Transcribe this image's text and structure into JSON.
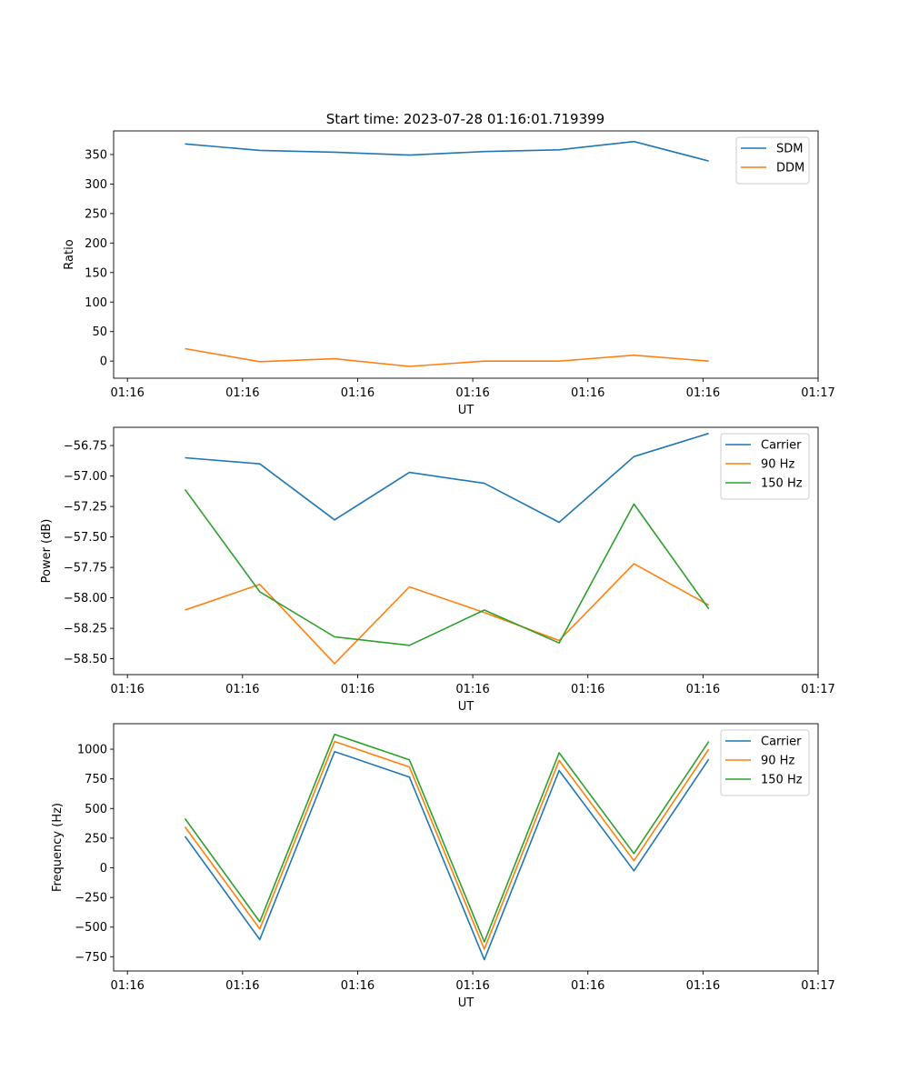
{
  "title": "Start time: 2023-07-28 01:16:01.719399",
  "chart_data": [
    {
      "type": "line",
      "xlabel": "UT",
      "ylabel": "Ratio",
      "xticks": [
        "01:16",
        "01:16",
        "01:16",
        "01:16",
        "01:16",
        "01:16",
        "01:17"
      ],
      "xtick_pos": [
        0,
        1,
        2,
        3,
        4,
        5,
        6
      ],
      "xlim": [
        -0.12,
        6.0
      ],
      "ylim": [
        -29,
        390
      ],
      "yticks": [
        0,
        50,
        100,
        150,
        200,
        250,
        300,
        350
      ],
      "ytick_labels": [
        "0",
        "50",
        "100",
        "150",
        "200",
        "250",
        "300",
        "350"
      ],
      "x": [
        0.5,
        1.15,
        1.8,
        2.45,
        3.1,
        3.75,
        4.4,
        5.05
      ],
      "series": [
        {
          "name": "SDM",
          "color": "#1f77b4",
          "values": [
            368,
            357,
            354,
            349,
            355,
            358,
            372,
            339
          ]
        },
        {
          "name": "DDM",
          "color": "#ff7f0e",
          "values": [
            21,
            -1,
            4,
            -9,
            0,
            0,
            10,
            0
          ]
        }
      ]
    },
    {
      "type": "line",
      "xlabel": "UT",
      "ylabel": "Power (dB)",
      "xticks": [
        "01:16",
        "01:16",
        "01:16",
        "01:16",
        "01:16",
        "01:16",
        "01:17"
      ],
      "xtick_pos": [
        0,
        1,
        2,
        3,
        4,
        5,
        6
      ],
      "xlim": [
        -0.12,
        6.0
      ],
      "ylim": [
        -58.63,
        -56.6
      ],
      "yticks": [
        -58.5,
        -58.25,
        -58.0,
        -57.75,
        -57.5,
        -57.25,
        -57.0,
        -56.75
      ],
      "ytick_labels": [
        "−58.50",
        "−58.25",
        "−58.00",
        "−57.75",
        "−57.50",
        "−57.25",
        "−57.00",
        "−56.75"
      ],
      "x": [
        0.5,
        1.15,
        1.8,
        2.45,
        3.1,
        3.75,
        4.4,
        5.05
      ],
      "series": [
        {
          "name": "Carrier",
          "color": "#1f77b4",
          "values": [
            -56.85,
            -56.9,
            -57.36,
            -56.97,
            -57.06,
            -57.38,
            -56.84,
            -56.65
          ]
        },
        {
          "name": "90 Hz",
          "color": "#ff7f0e",
          "values": [
            -58.1,
            -57.89,
            -58.54,
            -57.91,
            -58.12,
            -58.35,
            -57.72,
            -58.06
          ]
        },
        {
          "name": "150 Hz",
          "color": "#2ca02c",
          "values": [
            -57.11,
            -57.95,
            -58.32,
            -58.39,
            -58.1,
            -58.37,
            -57.23,
            -58.09
          ]
        }
      ]
    },
    {
      "type": "line",
      "xlabel": "UT",
      "ylabel": "Frequency (Hz)",
      "xticks": [
        "01:16",
        "01:16",
        "01:16",
        "01:16",
        "01:16",
        "01:16",
        "01:17"
      ],
      "xtick_pos": [
        0,
        1,
        2,
        3,
        4,
        5,
        6
      ],
      "xlim": [
        -0.12,
        6.0
      ],
      "ylim": [
        -870,
        1215
      ],
      "yticks": [
        -750,
        -500,
        -250,
        0,
        250,
        500,
        750,
        1000
      ],
      "ytick_labels": [
        "−750",
        "−500",
        "−250",
        "0",
        "250",
        "500",
        "750",
        "1000"
      ],
      "x": [
        0.5,
        1.15,
        1.8,
        2.45,
        3.1,
        3.75,
        4.4,
        5.05
      ],
      "series": [
        {
          "name": "Carrier",
          "color": "#1f77b4",
          "values": [
            265,
            -605,
            980,
            765,
            -775,
            820,
            -25,
            915
          ]
        },
        {
          "name": "90 Hz",
          "color": "#ff7f0e",
          "values": [
            345,
            -515,
            1065,
            850,
            -685,
            905,
            60,
            1000
          ]
        },
        {
          "name": "150 Hz",
          "color": "#2ca02c",
          "values": [
            415,
            -455,
            1125,
            910,
            -625,
            970,
            120,
            1065
          ]
        }
      ]
    }
  ]
}
